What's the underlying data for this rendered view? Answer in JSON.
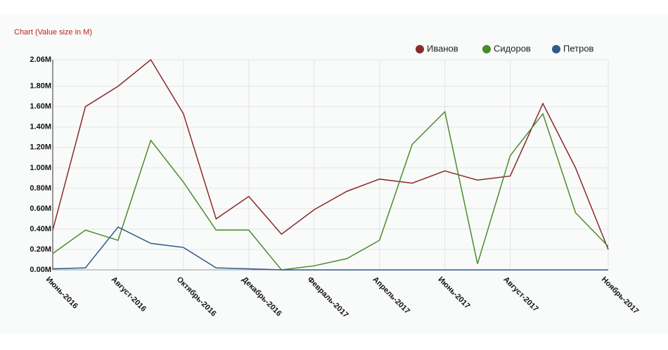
{
  "chart_data": {
    "type": "line",
    "title": "Chart (Value size in M)",
    "categories": [
      "Июнь-2016",
      null,
      "Август-2016",
      null,
      "Октябрь-2016",
      null,
      "Декабрь-2016",
      null,
      "Февраль-2017",
      null,
      "Апрель-2017",
      null,
      "Июнь-2017",
      null,
      "Август-2017",
      null,
      null,
      "Ноябрь-2017"
    ],
    "series": [
      {
        "name": "Иванов",
        "color": "#8b2a2a",
        "values": [
          0.39,
          1.6,
          1.8,
          2.06,
          1.53,
          0.5,
          0.72,
          0.35,
          0.59,
          0.77,
          0.89,
          0.85,
          0.97,
          0.88,
          0.92,
          1.63,
          1.0,
          0.2
        ]
      },
      {
        "name": "Сидоров",
        "color": "#4a8c2a",
        "values": [
          0.16,
          0.39,
          0.29,
          1.27,
          0.86,
          0.39,
          0.39,
          0,
          0.04,
          0.11,
          0.29,
          1.23,
          1.55,
          0.06,
          1.12,
          1.53,
          0.56,
          0.23
        ]
      },
      {
        "name": "Петров",
        "color": "#2d5a8c",
        "values": [
          0.01,
          0.02,
          0.42,
          0.26,
          0.22,
          0.02,
          0.01,
          0,
          0,
          0,
          0,
          0,
          0,
          0,
          0,
          0,
          0,
          0
        ]
      }
    ],
    "ylim": [
      0,
      2.06
    ],
    "yticks": [
      {
        "value": 0,
        "label": "0.00M"
      },
      {
        "value": 0.2,
        "label": "0.20M"
      },
      {
        "value": 0.4,
        "label": "0.40M"
      },
      {
        "value": 0.6,
        "label": "0.60M"
      },
      {
        "value": 0.8,
        "label": "0.80M"
      },
      {
        "value": 1.0,
        "label": "1.00M"
      },
      {
        "value": 1.2,
        "label": "1.20M"
      },
      {
        "value": 1.4,
        "label": "1.40M"
      },
      {
        "value": 1.6,
        "label": "1.60M"
      },
      {
        "value": 1.8,
        "label": "1.80M"
      },
      {
        "value": 2.06,
        "label": "2.06M"
      }
    ],
    "grid": true
  }
}
